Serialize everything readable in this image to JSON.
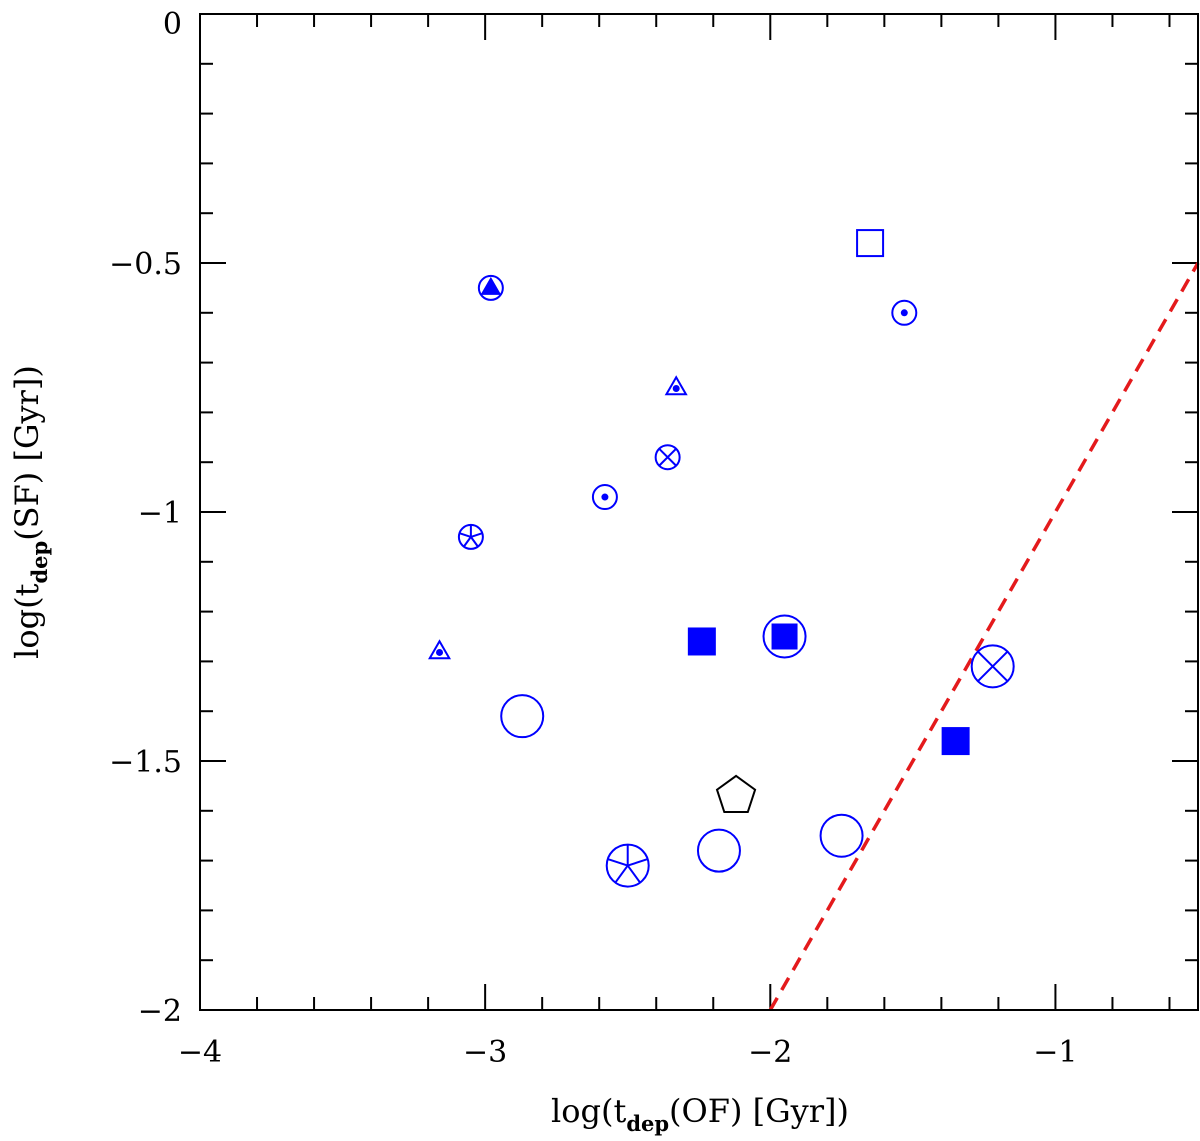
{
  "chart_data": {
    "type": "scatter",
    "title": "",
    "xlabel": {
      "pre": "log(t",
      "sub": "dep",
      "post": "(OF) [Gyr])"
    },
    "ylabel": {
      "pre": "log(t",
      "sub": "dep",
      "post": "(SF) [Gyr])"
    },
    "xlim": [
      -4,
      -0.5
    ],
    "ylim": [
      -2,
      0
    ],
    "x_ticks": [
      {
        "value": -4,
        "label": "−4"
      },
      {
        "value": -3,
        "label": "−3"
      },
      {
        "value": -2,
        "label": "−2"
      },
      {
        "value": -1,
        "label": "−1"
      }
    ],
    "y_ticks": [
      {
        "value": 0,
        "label": "0"
      },
      {
        "value": -0.5,
        "label": "−0.5"
      },
      {
        "value": -1,
        "label": "−1"
      },
      {
        "value": -1.5,
        "label": "−1.5"
      },
      {
        "value": -2,
        "label": "−2"
      }
    ],
    "x_minor_step": 0.2,
    "y_minor_step": 0.1,
    "grid": false,
    "colors": {
      "blue": "#0000ff",
      "black": "#000000",
      "red": "#e41a1c"
    },
    "reference_line": {
      "label": "",
      "x": [
        -2.0,
        -0.5
      ],
      "y": [
        -2.0,
        -0.5
      ],
      "style": "dashed",
      "color": "#e41a1c"
    },
    "points": [
      {
        "x": -2.98,
        "y": -0.55,
        "marker": "circle-triangle-filled",
        "size": "small",
        "color": "#0000ff"
      },
      {
        "x": -1.65,
        "y": -0.46,
        "marker": "square-open",
        "size": "large",
        "color": "#0000ff"
      },
      {
        "x": -1.53,
        "y": -0.6,
        "marker": "circle-dot",
        "size": "small",
        "color": "#0000ff"
      },
      {
        "x": -2.33,
        "y": -0.75,
        "marker": "triangle-dot",
        "size": "small",
        "color": "#0000ff"
      },
      {
        "x": -2.36,
        "y": -0.89,
        "marker": "circle-cross",
        "size": "small",
        "color": "#0000ff"
      },
      {
        "x": -2.58,
        "y": -0.97,
        "marker": "circle-dot",
        "size": "small",
        "color": "#0000ff"
      },
      {
        "x": -3.05,
        "y": -1.05,
        "marker": "circle-asterisk",
        "size": "small",
        "color": "#0000ff"
      },
      {
        "x": -3.16,
        "y": -1.28,
        "marker": "triangle-dot",
        "size": "small",
        "color": "#0000ff"
      },
      {
        "x": -2.24,
        "y": -1.26,
        "marker": "square-filled",
        "size": "large",
        "color": "#0000ff"
      },
      {
        "x": -1.95,
        "y": -1.25,
        "marker": "circle-square-filled",
        "size": "large",
        "color": "#0000ff"
      },
      {
        "x": -1.22,
        "y": -1.31,
        "marker": "circle-cross",
        "size": "large",
        "color": "#0000ff"
      },
      {
        "x": -2.87,
        "y": -1.41,
        "marker": "circle-open",
        "size": "large",
        "color": "#0000ff"
      },
      {
        "x": -1.35,
        "y": -1.46,
        "marker": "square-filled",
        "size": "large",
        "color": "#0000ff"
      },
      {
        "x": -2.12,
        "y": -1.57,
        "marker": "pentagon-open",
        "size": "large",
        "color": "#000000"
      },
      {
        "x": -1.75,
        "y": -1.65,
        "marker": "circle-open",
        "size": "large",
        "color": "#0000ff"
      },
      {
        "x": -2.18,
        "y": -1.68,
        "marker": "circle-open",
        "size": "large",
        "color": "#0000ff"
      },
      {
        "x": -2.5,
        "y": -1.71,
        "marker": "circle-asterisk",
        "size": "large",
        "color": "#0000ff"
      }
    ]
  }
}
